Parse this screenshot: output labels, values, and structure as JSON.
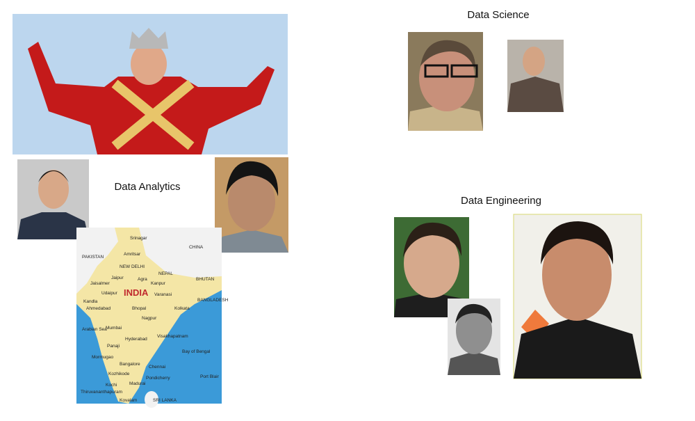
{
  "sections": [
    {
      "label": "Data Analytics"
    },
    {
      "label": "Data Science"
    },
    {
      "label": "Data Engineering"
    }
  ],
  "map": {
    "labels": [
      "Srinagar",
      "Amritsar",
      "PAKISTAN",
      "CHINA",
      "NEW DELHI",
      "NEPAL",
      "Jaipur",
      "Agra",
      "Kanpur",
      "BHUTAN",
      "Jaisalmer",
      "INDIA",
      "Udaipur",
      "Varanasi",
      "Kandla",
      "Ahmedabad",
      "Bhopal",
      "Kolkata",
      "BANGLADESH",
      "Nagpur",
      "Mumbai",
      "Hyderabad",
      "Visakhapatnam",
      "Panaji",
      "Arabian Sea",
      "Bay of Bengal",
      "Mormugao",
      "Bangalore",
      "Chennai",
      "Kozhikode",
      "Pondicherry",
      "Port Blair",
      "Kochi",
      "Madurai",
      "Thiruvananthapuram",
      "Kovalam",
      "SRI LANKA"
    ]
  }
}
